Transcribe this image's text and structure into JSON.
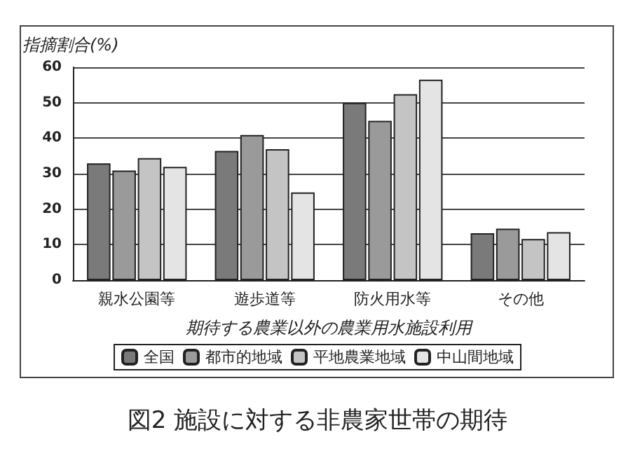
{
  "chart_data": {
    "type": "bar",
    "title": "図2 施設に対する非農家世帯の期待",
    "ylabel": "指摘割合(%)",
    "xlabel": "期待する農業以外の農業用水施設利用",
    "categories": [
      "親水公園等",
      "遊歩道等",
      "防火用水等",
      "その他"
    ],
    "series": [
      {
        "name": "全国",
        "color": "#7a7a7a",
        "values": [
          32.9,
          36.4,
          50,
          13.2
        ]
      },
      {
        "name": "都市的地域",
        "color": "#9a9a9a",
        "values": [
          30.9,
          40.9,
          44.9,
          14.5
        ]
      },
      {
        "name": "平地農業地域",
        "color": "#c4c4c4",
        "values": [
          34.4,
          36.9,
          52.4,
          11.6
        ]
      },
      {
        "name": "中山間地域",
        "color": "#e4e4e4",
        "values": [
          31.9,
          24.7,
          56.5,
          13.5
        ]
      }
    ],
    "ylim": [
      0,
      60
    ],
    "yticks": [
      0,
      10,
      20,
      30,
      40,
      50,
      60
    ],
    "grid": "y",
    "legend": "bottom"
  }
}
